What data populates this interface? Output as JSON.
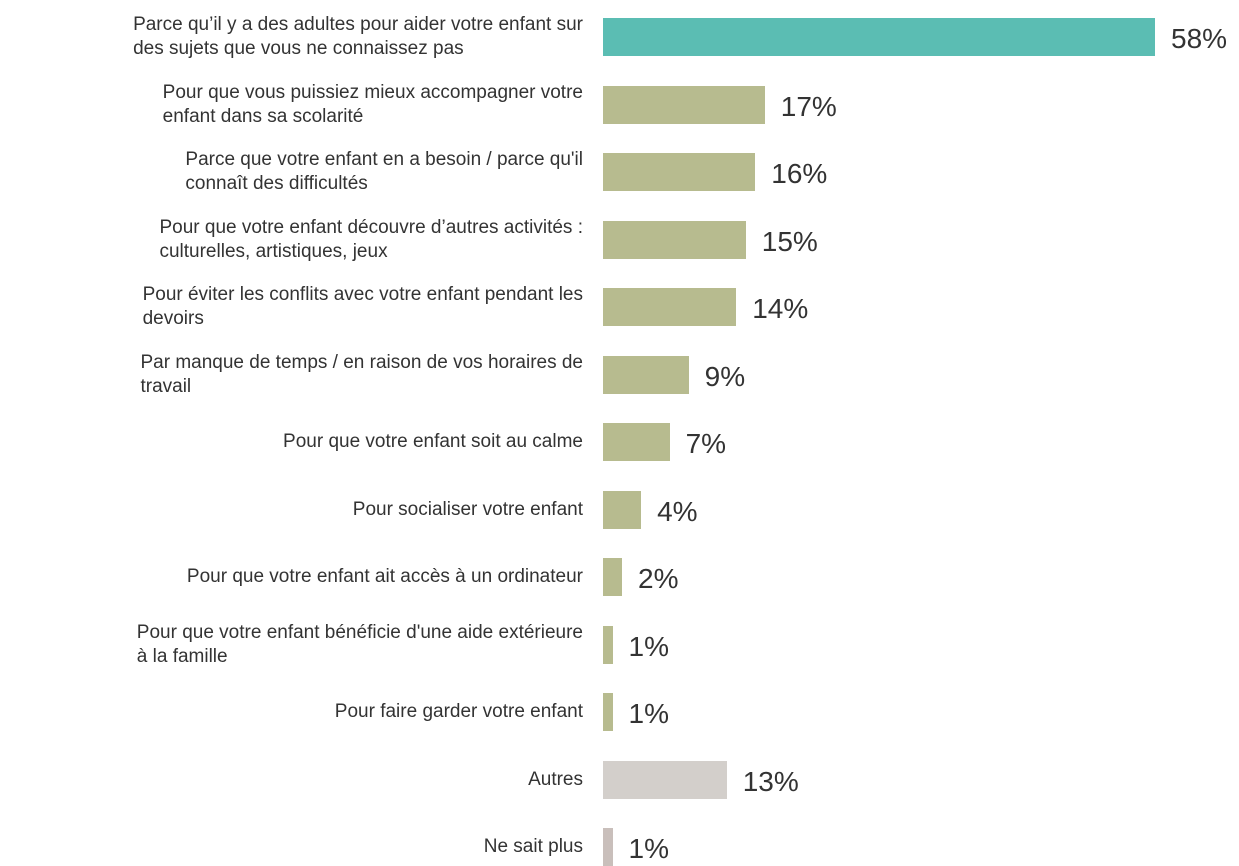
{
  "chart_data": {
    "type": "bar",
    "orientation": "horizontal",
    "xlim": [
      0,
      58
    ],
    "grid": false,
    "colors": {
      "highlight": "#5bbdb3",
      "default": "#b7bb8f",
      "other": "#d3cfcb",
      "dont_know": "#c9bfbb",
      "text": "#333333"
    },
    "categories": [
      "Parce qu’il y a des adultes pour aider votre enfant sur\ndes sujets que vous ne connaissez pas",
      "Pour que vous puissiez mieux accompagner votre\nenfant dans sa scolarité",
      "Parce que votre enfant en a besoin / parce qu'il\nconnaît des difficultés",
      "Pour que votre enfant découvre d’autres activités :\nculturelles, artistiques, jeux",
      "Pour éviter les conflits avec votre enfant pendant les\ndevoirs",
      "Par manque de temps / en raison de vos horaires de\ntravail",
      "Pour que votre enfant soit au calme",
      "Pour socialiser votre enfant",
      "Pour que votre enfant ait accès à un ordinateur",
      "Pour que votre enfant bénéficie d'une aide extérieure\nà la famille",
      "Pour faire garder votre enfant",
      "Autres",
      "Ne sait plus"
    ],
    "values": [
      58,
      17,
      16,
      15,
      14,
      9,
      7,
      4,
      2,
      1,
      1,
      13,
      1
    ],
    "value_labels": [
      "58%",
      "17%",
      "16%",
      "15%",
      "14%",
      "9%",
      "7%",
      "4%",
      "2%",
      "1%",
      "1%",
      "13%",
      "1%"
    ],
    "bar_color_keys": [
      "highlight",
      "default",
      "default",
      "default",
      "default",
      "default",
      "default",
      "default",
      "default",
      "default",
      "default",
      "other",
      "dont_know"
    ]
  }
}
